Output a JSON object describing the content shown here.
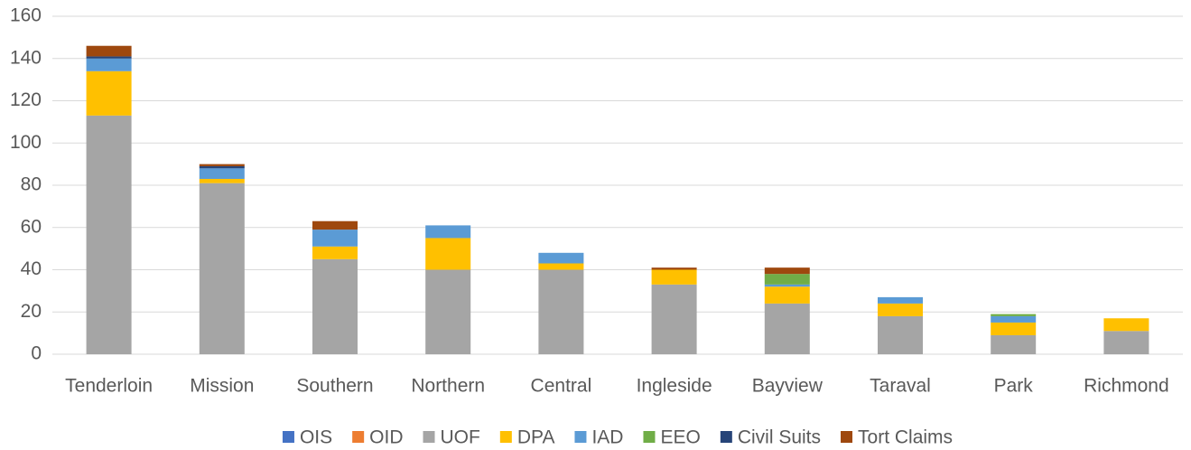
{
  "chart_data": {
    "type": "stacked_bar",
    "categories": [
      "Tenderloin",
      "Mission",
      "Southern",
      "Northern",
      "Central",
      "Ingleside",
      "Bayview",
      "Taraval",
      "Park",
      "Richmond"
    ],
    "series": [
      {
        "name": "OIS",
        "color": "#4472c4",
        "values": [
          0,
          0,
          0,
          0,
          0,
          0,
          0,
          0,
          0,
          0
        ]
      },
      {
        "name": "OID",
        "color": "#ed7d31",
        "values": [
          0,
          0,
          0,
          0,
          0,
          0,
          0,
          0,
          0,
          0
        ]
      },
      {
        "name": "UOF",
        "color": "#a5a5a5",
        "values": [
          113,
          81,
          45,
          40,
          40,
          33,
          24,
          18,
          9,
          11
        ]
      },
      {
        "name": "DPA",
        "color": "#ffc000",
        "values": [
          21,
          2,
          6,
          15,
          3,
          7,
          8,
          6,
          6,
          6
        ]
      },
      {
        "name": "IAD",
        "color": "#5b9bd5",
        "values": [
          6,
          5,
          8,
          6,
          5,
          0,
          1,
          3,
          3,
          0
        ]
      },
      {
        "name": "EEO",
        "color": "#70ad47",
        "values": [
          0,
          0,
          0,
          0,
          0,
          0,
          5,
          0,
          1,
          0
        ]
      },
      {
        "name": "Civil Suits",
        "color": "#264478",
        "values": [
          1,
          1,
          0,
          0,
          0,
          0,
          0,
          0,
          0,
          0
        ]
      },
      {
        "name": "Tort Claims",
        "color": "#9e480e",
        "values": [
          5,
          1,
          4,
          0,
          0,
          1,
          3,
          0,
          0,
          0
        ]
      }
    ],
    "ylim": [
      0,
      160
    ],
    "yticks": [
      0,
      20,
      40,
      60,
      80,
      100,
      120,
      140,
      160
    ],
    "grid": true,
    "legend": "bottom"
  }
}
